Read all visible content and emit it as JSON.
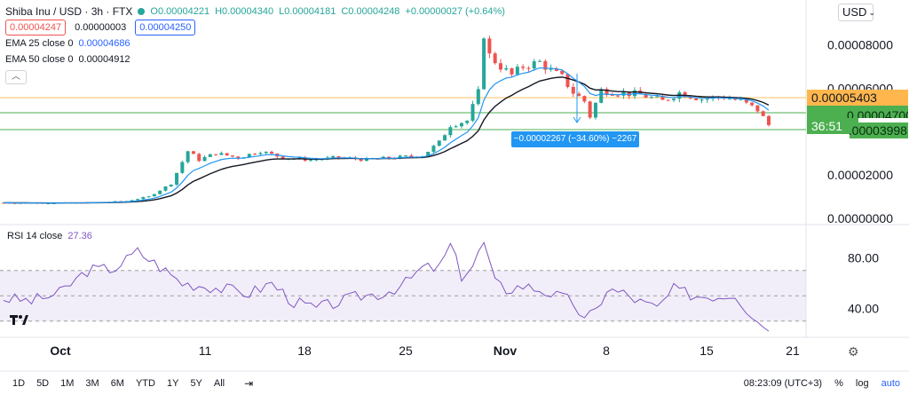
{
  "legend": {
    "symbol": "Shiba Inu / USD · 3h · FTX",
    "open": "O0.00004221",
    "high": "H0.00004340",
    "low": "L0.00004181",
    "close": "C0.00004248",
    "change": "+0.00000027 (+0.64%)",
    "sell_price": "0.00004247",
    "spread": "0.00000003",
    "buy_price": "0.00004250",
    "ema25_label": "EMA 25 close 0",
    "ema25_value": "0.00004686",
    "ema50_label": "EMA 50 close 0",
    "ema50_value": "0.00004912"
  },
  "rsi": {
    "label": "RSI 14 close",
    "value": "27.36"
  },
  "currency_select": "USD",
  "price_tags": {
    "orange": "0.00005403",
    "green_top": "0.00004700",
    "timer": "36:51",
    "green_bottom": "0.00003998"
  },
  "range_tooltip": "−0.00002267 (−34.60%) −2267",
  "timeframes": [
    "1D",
    "5D",
    "1M",
    "3M",
    "6M",
    "YTD",
    "1Y",
    "5Y",
    "All"
  ],
  "clock": "08:23:09 (UTC+3)",
  "bottom_right": {
    "percent": "%",
    "log": "log",
    "auto": "auto"
  },
  "colors": {
    "up": "#26a69a",
    "down": "#ef5350",
    "ema25": "#2196f3",
    "ema50": "#131722",
    "rsi": "#7e57c2",
    "orange_line": "#ff9800",
    "green_line": "#4caf50"
  },
  "chart_data": [
    {
      "type": "candlestick",
      "title": "Shiba Inu / USD · 3h · FTX",
      "yticks": [
        "0.00008000",
        "0.00006000",
        "0.00004000",
        "0.00002000",
        "0.00000000"
      ],
      "ylim": [
        0,
        9e-05
      ],
      "xticks": [
        "Oct",
        "11",
        "18",
        "25",
        "Nov",
        "8",
        "15",
        "21"
      ],
      "series": [
        {
          "name": "EMA 25 close 0",
          "values_note": "EMA overlay"
        },
        {
          "name": "EMA 50 close 0",
          "values_note": "EMA overlay"
        }
      ],
      "price_path": [
        [
          0,
          7.2e-06
        ],
        [
          8,
          7.1e-06
        ],
        [
          16,
          7.2e-06
        ],
        [
          22,
          8e-06
        ],
        [
          26,
          1e-05
        ],
        [
          30,
          1.6e-05
        ],
        [
          33,
          3.1e-05
        ],
        [
          35,
          2.7e-05
        ],
        [
          38,
          3e-05
        ],
        [
          42,
          2.8e-05
        ],
        [
          46,
          3.1e-05
        ],
        [
          50,
          2.8e-05
        ],
        [
          55,
          2.7e-05
        ],
        [
          60,
          2.8e-05
        ],
        [
          65,
          2.7e-05
        ],
        [
          70,
          2.8e-05
        ],
        [
          75,
          2.9e-05
        ],
        [
          78,
          3.5e-05
        ],
        [
          80,
          4.3e-05
        ],
        [
          83,
          4.5e-05
        ],
        [
          85,
          5.8e-05
        ],
        [
          86,
          8.5e-05
        ],
        [
          87,
          7.5e-05
        ],
        [
          89,
          7e-05
        ],
        [
          91,
          6.6e-05
        ],
        [
          93,
          7e-05
        ],
        [
          96,
          7.2e-05
        ],
        [
          98,
          6.8e-05
        ],
        [
          100,
          6.5e-05
        ],
        [
          102,
          5.8e-05
        ],
        [
          104,
          5.4e-05
        ],
        [
          105,
          4.7e-05
        ],
        [
          107,
          5.9e-05
        ],
        [
          110,
          5.8e-05
        ],
        [
          114,
          5.7e-05
        ],
        [
          118,
          5.4e-05
        ],
        [
          121,
          5.8e-05
        ],
        [
          125,
          5.5e-05
        ],
        [
          129,
          5.6e-05
        ],
        [
          132,
          5.4e-05
        ],
        [
          135,
          5e-05
        ],
        [
          137,
          4.3e-05
        ]
      ]
    },
    {
      "type": "line",
      "title": "RSI 14 close",
      "yticks": [
        "80.00",
        "40.00"
      ],
      "ylim": [
        20,
        100
      ],
      "band": [
        30,
        70
      ],
      "mid": 50,
      "path": [
        [
          0,
          48
        ],
        [
          5,
          46
        ],
        [
          10,
          52
        ],
        [
          15,
          70
        ],
        [
          20,
          72
        ],
        [
          24,
          85
        ],
        [
          28,
          73
        ],
        [
          32,
          60
        ],
        [
          36,
          58
        ],
        [
          40,
          55
        ],
        [
          44,
          52
        ],
        [
          48,
          60
        ],
        [
          52,
          45
        ],
        [
          56,
          40
        ],
        [
          60,
          45
        ],
        [
          64,
          50
        ],
        [
          68,
          52
        ],
        [
          72,
          60
        ],
        [
          75,
          72
        ],
        [
          78,
          72
        ],
        [
          80,
          90
        ],
        [
          82,
          66
        ],
        [
          84,
          74
        ],
        [
          86,
          92
        ],
        [
          88,
          60
        ],
        [
          90,
          55
        ],
        [
          93,
          58
        ],
        [
          96,
          55
        ],
        [
          99,
          50
        ],
        [
          102,
          45
        ],
        [
          104,
          30
        ],
        [
          106,
          38
        ],
        [
          108,
          55
        ],
        [
          111,
          52
        ],
        [
          114,
          45
        ],
        [
          117,
          40
        ],
        [
          120,
          55
        ],
        [
          124,
          50
        ],
        [
          128,
          50
        ],
        [
          131,
          52
        ],
        [
          133,
          40
        ],
        [
          135,
          30
        ],
        [
          137,
          25
        ]
      ]
    }
  ]
}
